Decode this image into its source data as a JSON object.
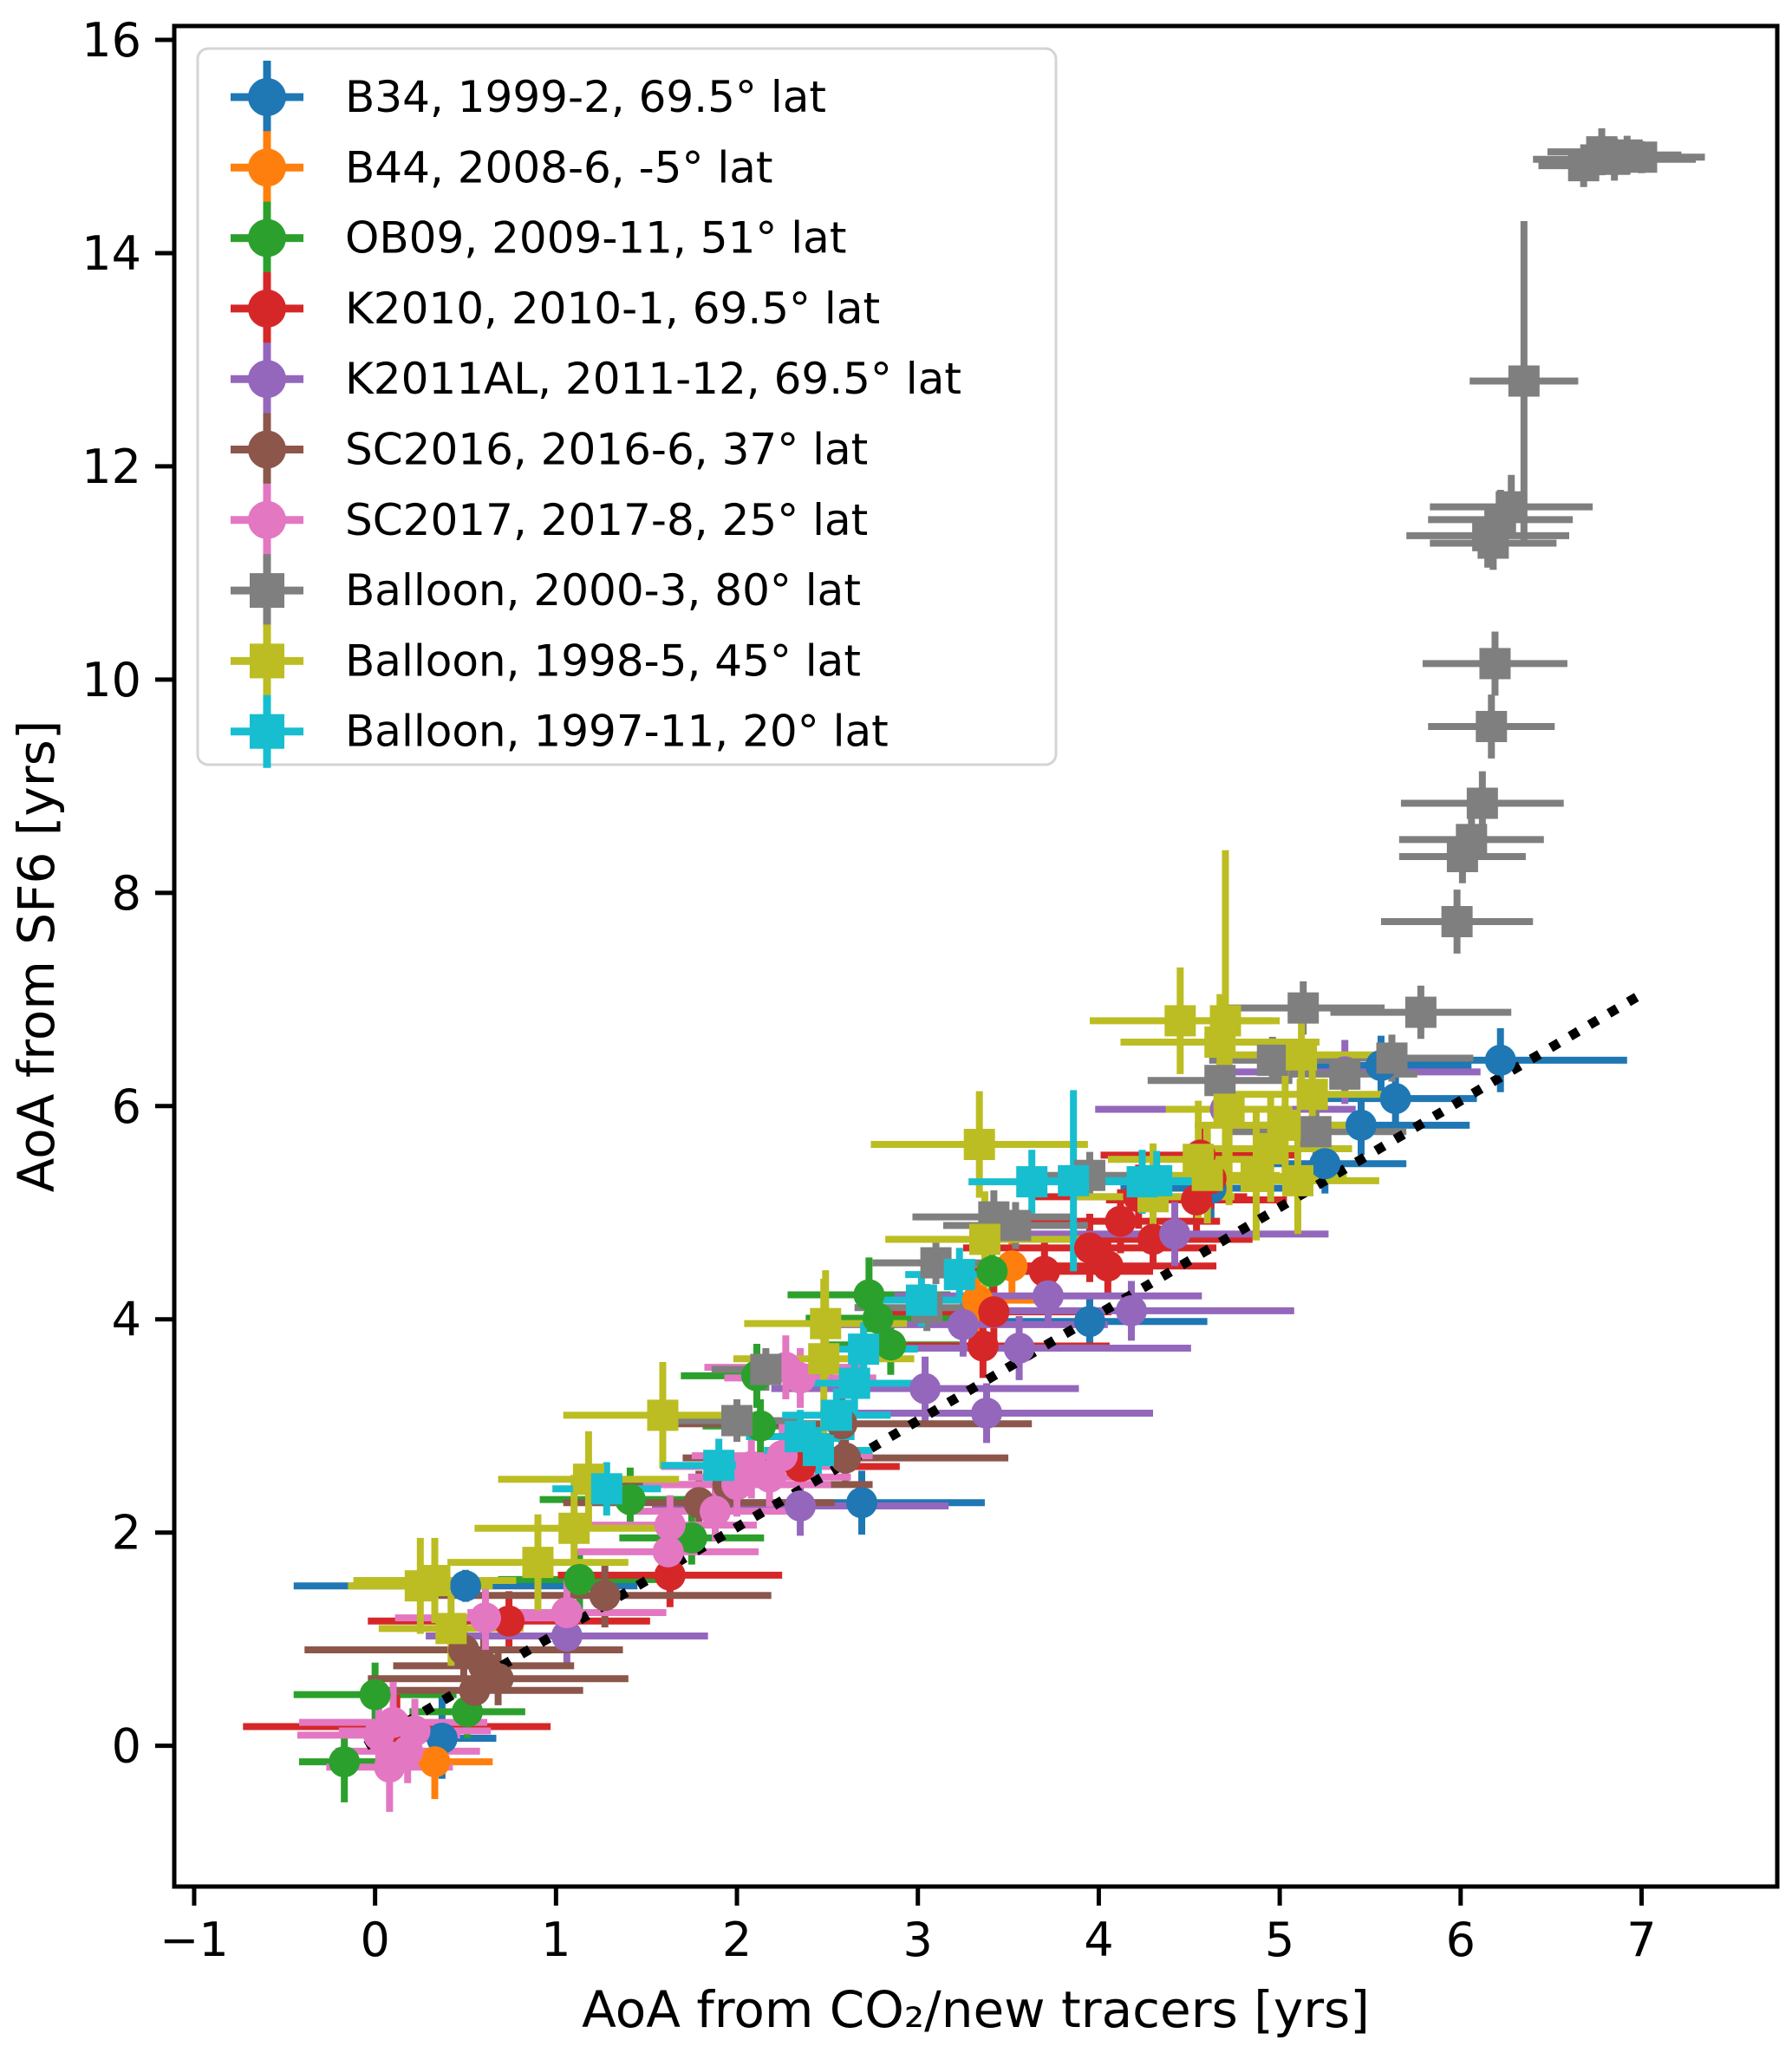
{
  "chart_data": {
    "type": "scatter",
    "title": "",
    "xlabel": "AoA from CO₂/new tracers [yrs]",
    "ylabel": "AoA from SF6 [yrs]",
    "xlim": [
      -1.11,
      7.75
    ],
    "ylim": [
      -1.32,
      16.13
    ],
    "grid": false,
    "xticks": {
      "values": [
        -1,
        0,
        1,
        2,
        3,
        4,
        5,
        6,
        7
      ],
      "labels": [
        "−1",
        "0",
        "1",
        "2",
        "3",
        "4",
        "5",
        "6",
        "7"
      ]
    },
    "yticks": {
      "values": [
        0,
        2,
        4,
        6,
        8,
        10,
        12,
        14,
        16
      ],
      "labels": [
        "0",
        "2",
        "4",
        "6",
        "8",
        "10",
        "12",
        "14",
        "16"
      ]
    },
    "legend_position": "upper left",
    "reference_line": {
      "name": "one-to-one-line",
      "style": "dotted",
      "color": "#000000",
      "points": [
        [
          -0.05,
          0.0
        ],
        [
          7.03,
          7.08
        ]
      ]
    },
    "series": [
      {
        "name": "B34",
        "label": "B34, 1999-2, 69.5° lat",
        "color": "#1f77b4",
        "marker": "circle",
        "points": [
          [
            0.37,
            0.07,
            0.3,
            0.38
          ],
          [
            0.5,
            1.5,
            0.95,
            0.15
          ],
          [
            2.69,
            2.28,
            0.68,
            0.3
          ],
          [
            3.95,
            3.98,
            0.65,
            0.25
          ],
          [
            4.62,
            5.23,
            0.5,
            0.3
          ],
          [
            5.25,
            5.46,
            0.45,
            0.28
          ],
          [
            5.45,
            5.82,
            0.6,
            0.28
          ],
          [
            5.64,
            6.07,
            0.45,
            0.28
          ],
          [
            5.56,
            6.38,
            0.5,
            0.28
          ],
          [
            6.22,
            6.43,
            0.7,
            0.3
          ]
        ]
      },
      {
        "name": "B44",
        "label": "B44, 2008-6, -5° lat",
        "color": "#ff7f0e",
        "marker": "circle",
        "points": [
          [
            0.33,
            -0.15,
            0.32,
            0.35
          ],
          [
            3.33,
            4.18,
            0.35,
            0.3
          ],
          [
            3.52,
            4.5,
            0.38,
            0.3
          ]
        ]
      },
      {
        "name": "OB09",
        "label": "OB09, 2009-11, 51° lat",
        "color": "#2ca02c",
        "marker": "circle",
        "points": [
          [
            -0.17,
            -0.15,
            0.25,
            0.38
          ],
          [
            0.0,
            0.48,
            0.45,
            0.3
          ],
          [
            0.51,
            0.32,
            0.32,
            0.25
          ],
          [
            1.13,
            1.56,
            0.45,
            0.28
          ],
          [
            1.41,
            2.31,
            0.5,
            0.3
          ],
          [
            1.75,
            1.95,
            0.4,
            0.25
          ],
          [
            2.11,
            3.47,
            0.42,
            0.3
          ],
          [
            2.13,
            3.0,
            0.32,
            0.25
          ],
          [
            2.73,
            4.23,
            0.45,
            0.35
          ],
          [
            2.78,
            4.01,
            0.4,
            0.3
          ],
          [
            2.85,
            3.76,
            0.38,
            0.28
          ],
          [
            3.41,
            4.45,
            0.35,
            0.42
          ]
        ]
      },
      {
        "name": "K2010",
        "label": "K2010, 2010-1, 69.5° lat",
        "color": "#d62728",
        "marker": "circle",
        "points": [
          [
            0.12,
            0.18,
            0.85,
            0.3
          ],
          [
            0.74,
            1.17,
            0.78,
            0.28
          ],
          [
            1.63,
            1.6,
            0.62,
            0.3
          ],
          [
            2.35,
            2.62,
            0.55,
            0.25
          ],
          [
            3.36,
            3.75,
            0.7,
            0.3
          ],
          [
            3.42,
            4.07,
            0.65,
            0.3
          ],
          [
            3.7,
            4.45,
            0.6,
            0.3
          ],
          [
            3.95,
            4.67,
            0.7,
            0.32
          ],
          [
            4.05,
            4.5,
            0.6,
            0.28
          ],
          [
            4.12,
            4.92,
            0.55,
            0.3
          ],
          [
            4.22,
            5.15,
            0.6,
            0.3
          ],
          [
            4.3,
            4.75,
            0.55,
            0.28
          ],
          [
            4.54,
            5.12,
            0.5,
            0.3
          ],
          [
            4.56,
            5.54,
            0.55,
            0.3
          ],
          [
            4.62,
            5.32,
            0.5,
            0.28
          ]
        ]
      },
      {
        "name": "K2011AL",
        "label": "K2011AL, 2011-12, 69.5° lat",
        "color": "#9467bd",
        "marker": "circle",
        "points": [
          [
            1.06,
            1.03,
            0.78,
            0.3
          ],
          [
            2.35,
            2.25,
            0.82,
            0.28
          ],
          [
            3.04,
            3.35,
            0.85,
            0.3
          ],
          [
            3.25,
            3.95,
            0.8,
            0.3
          ],
          [
            3.38,
            3.12,
            0.92,
            0.28
          ],
          [
            3.56,
            3.73,
            0.95,
            0.3
          ],
          [
            3.72,
            4.22,
            0.85,
            0.3
          ],
          [
            4.18,
            4.08,
            0.9,
            0.28
          ],
          [
            4.42,
            4.8,
            0.85,
            0.3
          ],
          [
            4.7,
            5.97,
            0.72,
            0.3
          ],
          [
            5.36,
            6.32,
            0.75,
            0.3
          ]
        ]
      },
      {
        "name": "SC2016",
        "label": "SC2016, 2016-6, 37° lat",
        "color": "#8c564b",
        "marker": "circle",
        "points": [
          [
            0.49,
            0.9,
            0.88,
            0.3
          ],
          [
            0.55,
            0.52,
            0.6,
            0.28
          ],
          [
            0.68,
            0.63,
            0.72,
            0.25
          ],
          [
            0.6,
            0.75,
            0.5,
            0.25
          ],
          [
            1.27,
            1.41,
            0.92,
            0.3
          ],
          [
            1.79,
            2.28,
            0.75,
            0.3
          ],
          [
            1.95,
            2.45,
            0.8,
            0.28
          ],
          [
            2.58,
            3.02,
            1.05,
            0.3
          ],
          [
            2.6,
            2.7,
            0.9,
            0.28
          ]
        ]
      },
      {
        "name": "SC2017",
        "label": "SC2017, 2017-8, 25° lat",
        "color": "#e377c2",
        "marker": "circle",
        "points": [
          [
            0.02,
            0.1,
            0.45,
            0.32
          ],
          [
            0.1,
            0.22,
            0.52,
            0.38
          ],
          [
            0.18,
            -0.05,
            0.4,
            0.3
          ],
          [
            0.08,
            -0.2,
            0.35,
            0.42
          ],
          [
            0.22,
            0.14,
            0.42,
            0.3
          ],
          [
            0.61,
            1.2,
            0.5,
            0.3
          ],
          [
            1.06,
            1.25,
            0.55,
            0.3
          ],
          [
            1.62,
            1.82,
            0.5,
            0.3
          ],
          [
            1.63,
            2.07,
            0.48,
            0.28
          ],
          [
            1.88,
            2.2,
            0.5,
            0.28
          ],
          [
            2.0,
            2.45,
            0.52,
            0.3
          ],
          [
            2.08,
            2.62,
            0.5,
            0.3
          ],
          [
            2.18,
            2.52,
            0.45,
            0.28
          ],
          [
            2.25,
            2.72,
            0.5,
            0.3
          ],
          [
            2.27,
            3.55,
            0.45,
            0.3
          ],
          [
            2.35,
            3.45,
            0.42,
            0.28
          ]
        ]
      },
      {
        "name": "Balloon-2000-3",
        "label": "Balloon, 2000-3, 80° lat",
        "color": "#7f7f7f",
        "marker": "square",
        "points": [
          [
            2.0,
            3.05,
            0.35,
            0.2
          ],
          [
            2.16,
            3.53,
            0.3,
            0.2
          ],
          [
            3.05,
            4.11,
            0.4,
            0.22
          ],
          [
            3.1,
            4.53,
            0.35,
            0.2
          ],
          [
            3.42,
            4.96,
            0.45,
            0.25
          ],
          [
            3.54,
            4.88,
            0.4,
            0.22
          ],
          [
            3.95,
            5.35,
            0.35,
            0.22
          ],
          [
            4.67,
            6.24,
            0.4,
            0.25
          ],
          [
            4.96,
            6.43,
            0.35,
            0.22
          ],
          [
            5.13,
            6.92,
            0.45,
            0.25
          ],
          [
            5.2,
            5.76,
            0.5,
            0.22
          ],
          [
            5.36,
            6.3,
            0.4,
            0.2
          ],
          [
            5.62,
            6.45,
            0.45,
            0.22
          ],
          [
            5.78,
            6.88,
            0.5,
            0.25
          ],
          [
            5.98,
            7.73,
            0.42,
            0.3
          ],
          [
            6.01,
            8.34,
            0.35,
            0.25
          ],
          [
            6.06,
            8.5,
            0.4,
            0.28
          ],
          [
            6.12,
            8.84,
            0.45,
            0.3
          ],
          [
            6.17,
            9.56,
            0.35,
            0.3
          ],
          [
            6.19,
            10.15,
            0.4,
            0.3
          ],
          [
            6.15,
            11.35,
            0.45,
            0.3
          ],
          [
            6.22,
            11.5,
            0.4,
            0.28
          ],
          [
            6.28,
            11.62,
            0.45,
            0.3
          ],
          [
            6.18,
            11.28,
            0.35,
            0.25
          ],
          [
            6.35,
            12.8,
            0.3,
            1.5
          ],
          [
            6.68,
            14.82,
            0.25,
            0.2
          ],
          [
            6.78,
            14.95,
            0.3,
            0.22
          ],
          [
            6.85,
            14.88,
            0.45,
            0.2
          ],
          [
            6.92,
            14.92,
            0.3,
            0.18
          ],
          [
            7.0,
            14.9,
            0.35,
            0.15
          ]
        ]
      },
      {
        "name": "Balloon-1998-5",
        "label": "Balloon, 1998-5, 45° lat",
        "color": "#bcbd22",
        "marker": "square",
        "points": [
          [
            0.25,
            1.5,
            0.4,
            0.45
          ],
          [
            0.33,
            1.55,
            0.45,
            0.4
          ],
          [
            0.42,
            1.1,
            0.4,
            0.35
          ],
          [
            0.9,
            1.72,
            0.5,
            0.45
          ],
          [
            1.1,
            2.04,
            0.55,
            0.5
          ],
          [
            1.18,
            2.5,
            0.5,
            0.45
          ],
          [
            1.59,
            3.1,
            0.55,
            0.5
          ],
          [
            2.48,
            3.63,
            0.5,
            0.75
          ],
          [
            2.49,
            3.96,
            0.45,
            0.5
          ],
          [
            3.34,
            5.64,
            0.6,
            0.5
          ],
          [
            3.37,
            4.75,
            0.55,
            0.45
          ],
          [
            4.45,
            6.8,
            0.5,
            0.5
          ],
          [
            4.67,
            6.6,
            0.55,
            0.45
          ],
          [
            4.7,
            6.8,
            0.3,
            1.6
          ],
          [
            4.72,
            5.97,
            0.35,
            0.9
          ],
          [
            4.87,
            5.34,
            0.5,
            0.6
          ],
          [
            4.95,
            5.6,
            0.45,
            0.5
          ],
          [
            5.03,
            5.82,
            0.5,
            0.55
          ],
          [
            5.12,
            6.48,
            0.45,
            0.5
          ],
          [
            5.18,
            6.11,
            0.5,
            0.45
          ],
          [
            5.1,
            5.3,
            0.45,
            0.5
          ],
          [
            4.55,
            5.5,
            0.5,
            0.55
          ],
          [
            4.3,
            5.15,
            0.45,
            0.5
          ],
          [
            4.6,
            5.35,
            0.4,
            0.45
          ]
        ]
      },
      {
        "name": "Balloon-1997-11",
        "label": "Balloon, 1997-11, 20° lat",
        "color": "#17becf",
        "marker": "square",
        "points": [
          [
            1.28,
            2.41,
            0.3,
            0.25
          ],
          [
            1.9,
            2.63,
            0.32,
            0.25
          ],
          [
            2.35,
            2.9,
            0.3,
            0.25
          ],
          [
            2.45,
            2.77,
            0.3,
            0.22
          ],
          [
            2.55,
            3.1,
            0.3,
            0.25
          ],
          [
            2.65,
            3.4,
            0.32,
            0.28
          ],
          [
            2.7,
            3.72,
            0.3,
            0.25
          ],
          [
            3.02,
            4.18,
            0.3,
            0.25
          ],
          [
            3.23,
            4.42,
            0.3,
            0.25
          ],
          [
            3.63,
            5.29,
            0.35,
            0.3
          ],
          [
            3.86,
            5.3,
            0.3,
            0.85
          ],
          [
            4.24,
            5.29,
            0.35,
            0.3
          ],
          [
            4.32,
            5.3,
            0.3,
            0.28
          ]
        ]
      }
    ]
  }
}
